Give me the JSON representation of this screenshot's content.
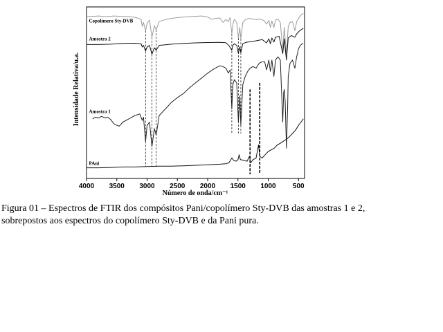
{
  "chart_data": {
    "type": "line",
    "title": "",
    "xlabel": "Número de onda/cm⁻¹",
    "ylabel": "Intensidade Relativa/u.a.",
    "xlim": [
      4000,
      400
    ],
    "x_reversed": true,
    "xticks": [
      "4000",
      "3500",
      "3000",
      "2500",
      "2000",
      "1500",
      "1000",
      "500"
    ],
    "xtick_values": [
      4000,
      3500,
      3000,
      2500,
      2000,
      1500,
      1000,
      500
    ],
    "y_ticks_shown": false,
    "grid": false,
    "series": [
      {
        "name": "Copolímero Sty-DVB",
        "color": "#9a9a9a",
        "points": [
          [
            4000,
            0.966
          ],
          [
            3900,
            0.968
          ],
          [
            3800,
            0.97
          ],
          [
            3700,
            0.966
          ],
          [
            3620,
            0.968
          ],
          [
            3550,
            0.97
          ],
          [
            3450,
            0.968
          ],
          [
            3300,
            0.966
          ],
          [
            3200,
            0.962
          ],
          [
            3100,
            0.95
          ],
          [
            3080,
            0.905
          ],
          [
            3060,
            0.93
          ],
          [
            3025,
            0.88
          ],
          [
            3000,
            0.925
          ],
          [
            2960,
            0.945
          ],
          [
            2920,
            0.84
          ],
          [
            2880,
            0.91
          ],
          [
            2850,
            0.885
          ],
          [
            2800,
            0.935
          ],
          [
            2700,
            0.948
          ],
          [
            2600,
            0.955
          ],
          [
            2500,
            0.96
          ],
          [
            2300,
            0.966
          ],
          [
            2100,
            0.97
          ],
          [
            2000,
            0.964
          ],
          [
            1940,
            0.95
          ],
          [
            1870,
            0.955
          ],
          [
            1800,
            0.958
          ],
          [
            1745,
            0.93
          ],
          [
            1700,
            0.948
          ],
          [
            1660,
            0.935
          ],
          [
            1630,
            0.96
          ],
          [
            1601,
            0.86
          ],
          [
            1583,
            0.92
          ],
          [
            1560,
            0.95
          ],
          [
            1520,
            0.93
          ],
          [
            1493,
            0.835
          ],
          [
            1470,
            0.9
          ],
          [
            1452,
            0.83
          ],
          [
            1420,
            0.93
          ],
          [
            1370,
            0.95
          ],
          [
            1300,
            0.955
          ],
          [
            1250,
            0.95
          ],
          [
            1180,
            0.948
          ],
          [
            1150,
            0.952
          ],
          [
            1070,
            0.942
          ],
          [
            1028,
            0.92
          ],
          [
            990,
            0.942
          ],
          [
            965,
            0.9
          ],
          [
            940,
            0.94
          ],
          [
            906,
            0.9
          ],
          [
            880,
            0.945
          ],
          [
            840,
            0.95
          ],
          [
            800,
            0.93
          ],
          [
            760,
            0.76
          ],
          [
            735,
            0.9
          ],
          [
            700,
            0.73
          ],
          [
            670,
            0.905
          ],
          [
            640,
            0.93
          ],
          [
            600,
            0.935
          ],
          [
            560,
            0.88
          ],
          [
            530,
            0.935
          ],
          [
            500,
            0.955
          ],
          [
            450,
            0.98
          ],
          [
            420,
            0.985
          ]
        ]
      },
      {
        "name": "Amostra 2",
        "color": "#111111",
        "points": [
          [
            4000,
            0.795
          ],
          [
            3800,
            0.795
          ],
          [
            3600,
            0.797
          ],
          [
            3500,
            0.8
          ],
          [
            3400,
            0.802
          ],
          [
            3200,
            0.803
          ],
          [
            3100,
            0.8
          ],
          [
            3080,
            0.78
          ],
          [
            3060,
            0.79
          ],
          [
            3025,
            0.755
          ],
          [
            3000,
            0.78
          ],
          [
            2960,
            0.79
          ],
          [
            2920,
            0.735
          ],
          [
            2880,
            0.775
          ],
          [
            2850,
            0.76
          ],
          [
            2800,
            0.79
          ],
          [
            2600,
            0.797
          ],
          [
            2400,
            0.802
          ],
          [
            2200,
            0.805
          ],
          [
            2000,
            0.807
          ],
          [
            1800,
            0.808
          ],
          [
            1700,
            0.806
          ],
          [
            1650,
            0.79
          ],
          [
            1601,
            0.76
          ],
          [
            1583,
            0.79
          ],
          [
            1560,
            0.8
          ],
          [
            1520,
            0.79
          ],
          [
            1493,
            0.74
          ],
          [
            1470,
            0.78
          ],
          [
            1452,
            0.745
          ],
          [
            1420,
            0.8
          ],
          [
            1370,
            0.808
          ],
          [
            1300,
            0.812
          ],
          [
            1200,
            0.818
          ],
          [
            1100,
            0.825
          ],
          [
            1028,
            0.805
          ],
          [
            990,
            0.83
          ],
          [
            965,
            0.8
          ],
          [
            940,
            0.835
          ],
          [
            906,
            0.81
          ],
          [
            880,
            0.84
          ],
          [
            820,
            0.845
          ],
          [
            760,
            0.74
          ],
          [
            735,
            0.83
          ],
          [
            700,
            0.7
          ],
          [
            670,
            0.835
          ],
          [
            620,
            0.85
          ],
          [
            560,
            0.84
          ],
          [
            530,
            0.86
          ],
          [
            480,
            0.88
          ],
          [
            440,
            0.89
          ],
          [
            420,
            0.895
          ]
        ]
      },
      {
        "name": "Amostra 1",
        "color": "#222222",
        "points": [
          [
            3900,
            0.34
          ],
          [
            3850,
            0.35
          ],
          [
            3800,
            0.345
          ],
          [
            3750,
            0.355
          ],
          [
            3700,
            0.345
          ],
          [
            3650,
            0.35
          ],
          [
            3600,
            0.335
          ],
          [
            3550,
            0.31
          ],
          [
            3500,
            0.3
          ],
          [
            3460,
            0.295
          ],
          [
            3400,
            0.32
          ],
          [
            3300,
            0.34
          ],
          [
            3200,
            0.36
          ],
          [
            3120,
            0.37
          ],
          [
            3080,
            0.33
          ],
          [
            3060,
            0.35
          ],
          [
            3025,
            0.2
          ],
          [
            3000,
            0.3
          ],
          [
            2960,
            0.32
          ],
          [
            2920,
            0.17
          ],
          [
            2880,
            0.28
          ],
          [
            2850,
            0.24
          ],
          [
            2800,
            0.36
          ],
          [
            2700,
            0.4
          ],
          [
            2600,
            0.44
          ],
          [
            2500,
            0.47
          ],
          [
            2400,
            0.495
          ],
          [
            2300,
            0.53
          ],
          [
            2200,
            0.56
          ],
          [
            2100,
            0.59
          ],
          [
            2000,
            0.62
          ],
          [
            1900,
            0.645
          ],
          [
            1800,
            0.665
          ],
          [
            1750,
            0.66
          ],
          [
            1700,
            0.65
          ],
          [
            1660,
            0.62
          ],
          [
            1630,
            0.64
          ],
          [
            1601,
            0.4
          ],
          [
            1583,
            0.55
          ],
          [
            1560,
            0.58
          ],
          [
            1520,
            0.56
          ],
          [
            1493,
            0.32
          ],
          [
            1470,
            0.48
          ],
          [
            1452,
            0.3
          ],
          [
            1420,
            0.55
          ],
          [
            1380,
            0.6
          ],
          [
            1340,
            0.63
          ],
          [
            1300,
            0.65
          ],
          [
            1250,
            0.66
          ],
          [
            1200,
            0.65
          ],
          [
            1150,
            0.68
          ],
          [
            1100,
            0.69
          ],
          [
            1060,
            0.69
          ],
          [
            1028,
            0.64
          ],
          [
            990,
            0.7
          ],
          [
            965,
            0.63
          ],
          [
            940,
            0.7
          ],
          [
            906,
            0.6
          ],
          [
            880,
            0.7
          ],
          [
            840,
            0.72
          ],
          [
            800,
            0.7
          ],
          [
            760,
            0.32
          ],
          [
            745,
            0.5
          ],
          [
            735,
            0.52
          ],
          [
            720,
            0.45
          ],
          [
            700,
            0.16
          ],
          [
            680,
            0.4
          ],
          [
            670,
            0.6
          ],
          [
            640,
            0.68
          ],
          [
            600,
            0.7
          ],
          [
            560,
            0.65
          ],
          [
            530,
            0.72
          ],
          [
            500,
            0.77
          ],
          [
            470,
            0.79
          ],
          [
            440,
            0.8
          ],
          [
            420,
            0.8
          ]
        ]
      },
      {
        "name": "PAni",
        "color": "#111111",
        "points": [
          [
            4000,
            0.04
          ],
          [
            3800,
            0.04
          ],
          [
            3600,
            0.042
          ],
          [
            3400,
            0.045
          ],
          [
            3200,
            0.045
          ],
          [
            3000,
            0.048
          ],
          [
            2800,
            0.05
          ],
          [
            2600,
            0.05
          ],
          [
            2400,
            0.052
          ],
          [
            2200,
            0.055
          ],
          [
            2000,
            0.058
          ],
          [
            1800,
            0.062
          ],
          [
            1700,
            0.065
          ],
          [
            1650,
            0.07
          ],
          [
            1600,
            0.1
          ],
          [
            1570,
            0.085
          ],
          [
            1530,
            0.08
          ],
          [
            1500,
            0.09
          ],
          [
            1480,
            0.12
          ],
          [
            1460,
            0.09
          ],
          [
            1400,
            0.085
          ],
          [
            1350,
            0.08
          ],
          [
            1310,
            0.11
          ],
          [
            1290,
            0.07
          ],
          [
            1250,
            0.09
          ],
          [
            1200,
            0.1
          ],
          [
            1160,
            0.18
          ],
          [
            1140,
            0.11
          ],
          [
            1100,
            0.1
          ],
          [
            1050,
            0.12
          ],
          [
            1000,
            0.14
          ],
          [
            950,
            0.15
          ],
          [
            900,
            0.16
          ],
          [
            850,
            0.18
          ],
          [
            800,
            0.19
          ],
          [
            760,
            0.2
          ],
          [
            700,
            0.215
          ],
          [
            650,
            0.23
          ],
          [
            600,
            0.25
          ],
          [
            550,
            0.27
          ],
          [
            500,
            0.3
          ],
          [
            460,
            0.32
          ],
          [
            420,
            0.34
          ]
        ]
      }
    ],
    "reference_lines": [
      {
        "x": 3025,
        "style": "dashed",
        "y_top": 0.88,
        "y_bottom": 0.05
      },
      {
        "x": 2920,
        "style": "dashed",
        "y_top": 0.84,
        "y_bottom": 0.05
      },
      {
        "x": 2850,
        "style": "dashed",
        "y_top": 0.885,
        "y_bottom": 0.05
      },
      {
        "x": 1601,
        "style": "dashed",
        "y_top": 0.86,
        "y_bottom": 0.25
      },
      {
        "x": 1493,
        "style": "dashed",
        "y_top": 0.835,
        "y_bottom": 0.25
      },
      {
        "x": 1452,
        "style": "dashed",
        "y_top": 0.83,
        "y_bottom": 0.25
      },
      {
        "x": 1300,
        "style": "bold-dashed",
        "y_top": 0.52,
        "y_bottom": 0.0
      },
      {
        "x": 1140,
        "style": "bold-dashed",
        "y_top": 0.56,
        "y_bottom": 0.0
      }
    ],
    "series_labels": [
      {
        "text": "Copolímero Sty-DVB",
        "x": 3960,
        "y": 0.93
      },
      {
        "text": "Amostra 2",
        "x": 3960,
        "y": 0.82
      },
      {
        "text": "Amostra 1",
        "x": 3960,
        "y": 0.375
      },
      {
        "text": "PAni",
        "x": 3960,
        "y": 0.058
      }
    ]
  },
  "caption": {
    "line1": "Figura 01 – Espectros de FTIR dos compósitos Pani/copolímero Sty-DVB das amostras 1 e 2,",
    "line2": "sobrepostos aos espectros do copolímero Sty-DVB e da Pani pura."
  }
}
